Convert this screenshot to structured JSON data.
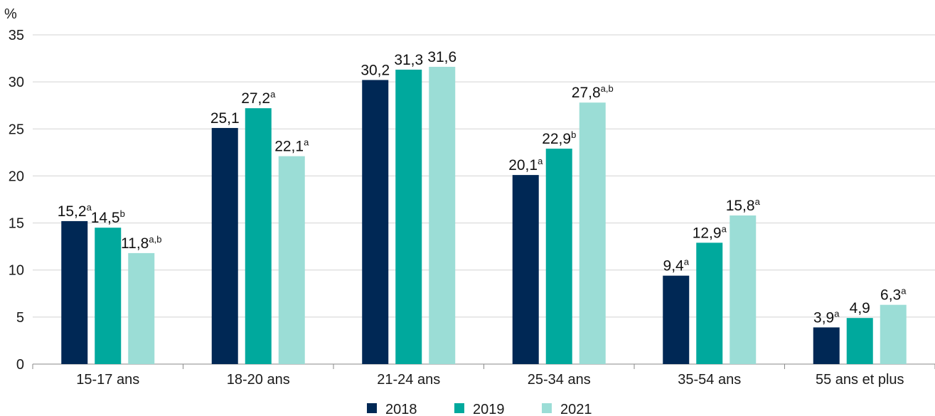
{
  "chart_data": {
    "type": "bar",
    "ylabel": "%",
    "ylim": [
      0,
      35
    ],
    "yticks": [
      0,
      5,
      10,
      15,
      20,
      25,
      30,
      35
    ],
    "grid": true,
    "legend_position": "bottom-center",
    "categories": [
      "15-17 ans",
      "18-20 ans",
      "21-24 ans",
      "25-34 ans",
      "35-54 ans",
      "55 ans et plus"
    ],
    "series": [
      {
        "name": "2018",
        "color": "#002855",
        "values": [
          15.2,
          25.1,
          30.2,
          20.1,
          9.4,
          3.9
        ],
        "labels": [
          "15,2",
          "25,1",
          "30,2",
          "20,1",
          "9,4",
          "3,9"
        ],
        "notes": [
          "a",
          "",
          "",
          "a",
          "a",
          "a"
        ]
      },
      {
        "name": "2019",
        "color": "#00a99d",
        "values": [
          14.5,
          27.2,
          31.3,
          22.9,
          12.9,
          4.9
        ],
        "labels": [
          "14,5",
          "27,2",
          "31,3",
          "22,9",
          "12,9",
          "4,9"
        ],
        "notes": [
          "b",
          "a",
          "",
          "b",
          "a",
          ""
        ]
      },
      {
        "name": "2021",
        "color": "#9bddd6",
        "values": [
          11.8,
          22.1,
          31.6,
          27.8,
          15.8,
          6.3
        ],
        "labels": [
          "11,8",
          "22,1",
          "31,6",
          "27,8",
          "15,8",
          "6,3"
        ],
        "notes": [
          "a,b",
          "a",
          "",
          "a,b",
          "a",
          "a"
        ]
      }
    ]
  }
}
